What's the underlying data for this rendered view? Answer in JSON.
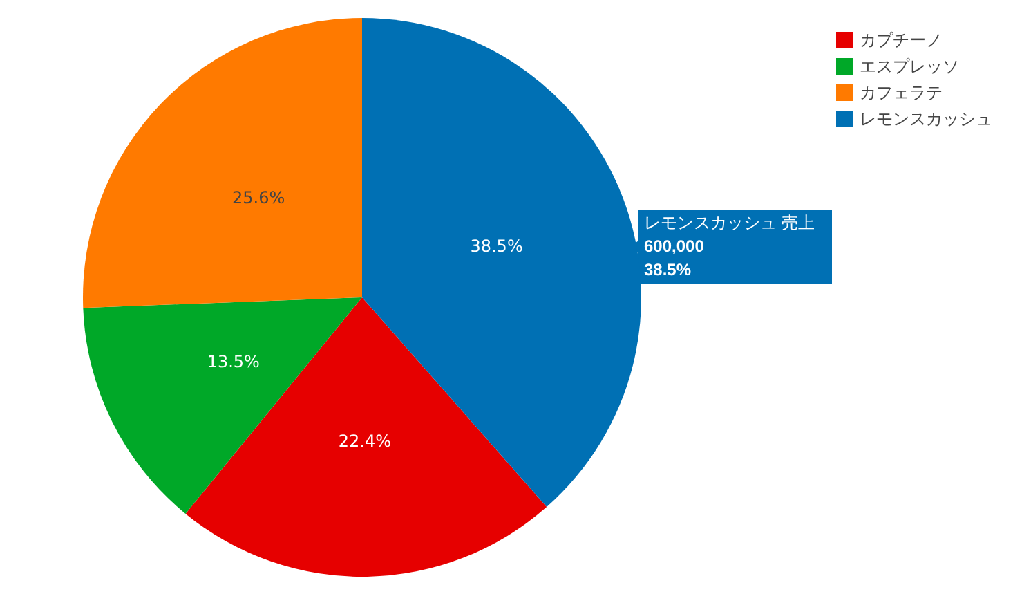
{
  "chart_data": {
    "type": "pie",
    "categories": [
      "カプチーノ",
      "エスプレッソ",
      "カフェラテ",
      "レモンスカッシュ"
    ],
    "values": [
      22.4,
      13.5,
      25.6,
      38.5
    ],
    "colors": [
      "#e60000",
      "#00a828",
      "#ff7a00",
      "#0070b4"
    ],
    "value_labels": [
      "22.4%",
      "13.5%",
      "25.6%",
      "38.5%"
    ],
    "legend": "top right",
    "annotations": [
      "レモンスカッシュ 売上",
      "600,000",
      "38.5%"
    ]
  }
}
